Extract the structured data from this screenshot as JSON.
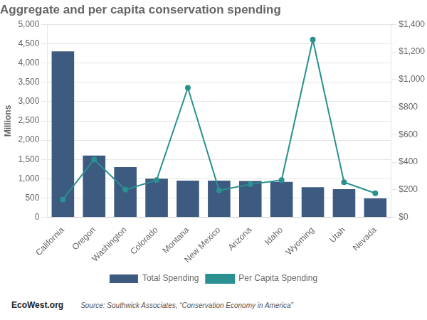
{
  "chart_data": {
    "type": "bar",
    "title": "Aggregate and per capita conservation spending",
    "categories": [
      "California",
      "Oregon",
      "Washington",
      "Colorado",
      "Montana",
      "New Mexico",
      "Arizona",
      "Idaho",
      "Wyoming",
      "Utah",
      "Nevada"
    ],
    "series": [
      {
        "name": "Total Spending",
        "type": "bar",
        "color": "#3D5A80",
        "values": [
          4300,
          1600,
          1300,
          1000,
          950,
          950,
          940,
          920,
          780,
          730,
          490
        ]
      },
      {
        "name": "Per Capita Spending",
        "type": "line",
        "color": "#2A9090",
        "axis": "y2",
        "values": [
          130,
          420,
          200,
          270,
          940,
          195,
          240,
          270,
          1290,
          255,
          175
        ]
      }
    ],
    "ylabel": "Millions",
    "ylim": [
      0,
      5000
    ],
    "yticks": [
      0,
      500,
      {
        "value": 1000,
        "label": "1,000"
      },
      {
        "value": 1500,
        "label": "1,500"
      },
      {
        "value": 2000,
        "label": "2,000"
      },
      {
        "value": 2500,
        "label": "2,500"
      },
      {
        "value": 3000,
        "label": "3,000"
      },
      {
        "value": 3500,
        "label": "3,500"
      },
      {
        "value": 4000,
        "label": "4,000"
      },
      {
        "value": 4500,
        "label": "4,500"
      },
      {
        "value": 5000,
        "label": "5,000"
      }
    ],
    "y2lim": [
      0,
      1400
    ],
    "y2ticks": [
      {
        "value": 0,
        "label": "$0"
      },
      {
        "value": 200,
        "label": "$200"
      },
      {
        "value": 400,
        "label": "$400"
      },
      {
        "value": 600,
        "label": "$600"
      },
      {
        "value": 800,
        "label": "$800"
      },
      {
        "value": 1000,
        "label": "$1,000"
      },
      {
        "value": 1200,
        "label": "$1,200"
      },
      {
        "value": 1400,
        "label": "$1,400"
      }
    ],
    "grid": true,
    "legend": "bottom",
    "annotations": [
      "EcoWest.org",
      "Source: Southwick Associates, “Conservation Economy in America”"
    ]
  }
}
